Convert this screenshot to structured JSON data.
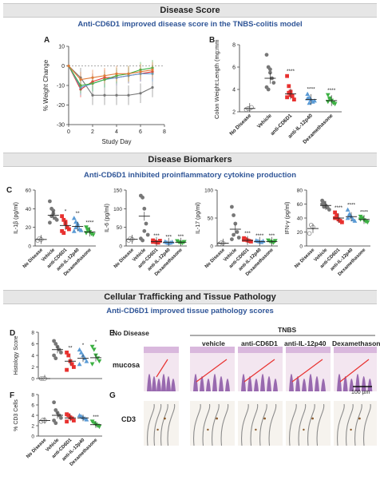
{
  "sections": {
    "disease_score": {
      "title": "Disease Score",
      "subtitle": "Anti-CD6D1 improved disease score in the TNBS-colitis model"
    },
    "biomarkers": {
      "title": "Disease Biomarkers",
      "subtitle": "Anti-CD6D1 inhibited proinflammatory cytokine production"
    },
    "pathology": {
      "title": "Cellular Trafficking and Tissue Pathology",
      "subtitle": "Anti-CD6D1 improved tissue pathology scores"
    }
  },
  "panel_letters": {
    "A": "A",
    "B": "B",
    "C": "C",
    "D": "D",
    "E": "E",
    "F": "F",
    "G": "G"
  },
  "groups": [
    "No Disease",
    "Vehicle",
    "anti-CD6D1",
    "anti-IL-12p40",
    "Dexamethasone"
  ],
  "colors": {
    "no_disease": "#888888",
    "vehicle": "#777777",
    "cd6d1": "#e8312f",
    "il12": "#5b9bd5",
    "dexa": "#3cb043"
  },
  "chart_data": [
    {
      "id": "A",
      "type": "line",
      "xlabel": "Study Day",
      "ylabel": "% Weight Change",
      "xlim": [
        0,
        8
      ],
      "ylim": [
        -30,
        10
      ],
      "xticks": [
        "0",
        "2",
        "4",
        "6",
        "8"
      ],
      "yticks": [
        "10",
        "0",
        "-10",
        "-20",
        "-30"
      ],
      "x": [
        0,
        1,
        2,
        3,
        4,
        5,
        6,
        7
      ],
      "series": [
        {
          "values": [
            0,
            -6,
            -15,
            -15,
            -15,
            -15,
            -14,
            -11
          ]
        },
        {
          "values": [
            0,
            -12,
            -8,
            -6,
            -6,
            -5,
            -4,
            -3
          ]
        },
        {
          "values": [
            0,
            -11,
            -9,
            -7,
            -6,
            -5,
            -4,
            -4
          ]
        },
        {
          "values": [
            0,
            -10,
            -9,
            -7,
            -5,
            -4,
            -2,
            -1
          ]
        },
        {
          "values": [
            0,
            -7,
            -6,
            -5,
            -4,
            -4,
            -3,
            -2
          ]
        }
      ]
    },
    {
      "id": "B",
      "type": "scatter",
      "ylabel": "Colon Weight:Length (mg:mm)",
      "ylim": [
        2,
        8
      ],
      "yticks": [
        "8",
        "6",
        "4",
        "2"
      ],
      "means": [
        2.3,
        5.0,
        3.6,
        3.1,
        3.0
      ],
      "points": [
        [
          2.2,
          2.3,
          2.3,
          2.4
        ],
        [
          7.1,
          6.0,
          5.5,
          5.0,
          4.6,
          4.2,
          4.0,
          5.8
        ],
        [
          5.2,
          4.3,
          3.8,
          3.4,
          3.1,
          3.3,
          3.7,
          3.5
        ],
        [
          3.6,
          3.3,
          3.1,
          2.9,
          3.0,
          3.2,
          2.8
        ],
        [
          3.5,
          3.2,
          3.0,
          2.8,
          2.7,
          2.9,
          3.1
        ]
      ],
      "significance": [
        "",
        "",
        "****",
        "****",
        "****"
      ]
    },
    {
      "id": "C1",
      "type": "scatter",
      "ylabel": "IL-1β (pg/ml)",
      "ylim": [
        0,
        60
      ],
      "yticks": [
        "60",
        "40",
        "20",
        "0"
      ],
      "means": [
        7,
        33,
        22,
        21,
        15
      ],
      "points": [
        [
          6,
          8,
          7
        ],
        [
          48,
          40,
          35,
          30,
          28,
          25,
          32,
          38
        ],
        [
          32,
          28,
          24,
          20,
          18,
          16,
          14,
          26
        ],
        [
          30,
          26,
          22,
          18,
          17,
          16,
          20,
          24
        ],
        [
          20,
          18,
          15,
          13,
          12,
          14,
          16
        ]
      ],
      "significance": [
        "",
        "",
        "*",
        "**",
        "****"
      ]
    },
    {
      "id": "C2",
      "type": "scatter",
      "ylabel": "IL-6 (pg/ml)",
      "ylim": [
        0,
        150
      ],
      "yticks": [
        "150",
        "100",
        "50",
        "0"
      ],
      "means": [
        18,
        80,
        12,
        10,
        10
      ],
      "points": [
        [
          15,
          20,
          18
        ],
        [
          135,
          130,
          100,
          60,
          30,
          20,
          15,
          40
        ],
        [
          15,
          12,
          10,
          9,
          14,
          11
        ],
        [
          12,
          10,
          8,
          9,
          11
        ],
        [
          13,
          10,
          9,
          8,
          11
        ]
      ],
      "significance": [
        "",
        "",
        "***",
        "***",
        "***"
      ]
    },
    {
      "id": "C3",
      "type": "scatter",
      "ylabel": "IL-17 (pg/ml)",
      "ylim": [
        0,
        100
      ],
      "yticks": [
        "100",
        "50",
        "0"
      ],
      "means": [
        5,
        30,
        10,
        8,
        8
      ],
      "points": [
        [
          4,
          6,
          5
        ],
        [
          70,
          55,
          40,
          25,
          15,
          12,
          20
        ],
        [
          14,
          12,
          10,
          9,
          8,
          11
        ],
        [
          10,
          9,
          8,
          7,
          9
        ],
        [
          10,
          8,
          7,
          6,
          9
        ]
      ],
      "significance": [
        "",
        "",
        "***",
        "****",
        "***"
      ]
    },
    {
      "id": "C4",
      "type": "scatter",
      "ylabel": "IFN-γ (pg/ml)",
      "ylim": [
        0,
        80
      ],
      "yticks": [
        "80",
        "60",
        "40",
        "20",
        "0"
      ],
      "means": [
        25,
        58,
        40,
        42,
        38
      ],
      "points": [
        [
          18,
          30,
          27
        ],
        [
          65,
          62,
          58,
          55,
          52,
          60,
          56
        ],
        [
          48,
          42,
          38,
          36,
          34,
          40,
          44
        ],
        [
          52,
          46,
          42,
          38,
          36,
          40,
          44
        ],
        [
          42,
          40,
          37,
          35,
          34,
          38
        ]
      ],
      "significance": [
        "",
        "",
        "****",
        "****",
        "****"
      ]
    },
    {
      "id": "D",
      "type": "scatter",
      "ylabel": "Histology Score",
      "ylim": [
        0,
        8
      ],
      "yticks": [
        "8",
        "6",
        "4",
        "2",
        "0"
      ],
      "means": [
        0,
        5.0,
        3.0,
        3.5,
        3.6
      ],
      "points": [
        [
          0,
          0,
          0
        ],
        [
          6.5,
          6,
          5.5,
          5,
          4.5,
          4,
          3.5
        ],
        [
          4.5,
          4,
          3,
          2.5,
          2,
          1.5
        ],
        [
          5,
          4.5,
          4,
          3.5,
          3,
          2.5
        ],
        [
          5.5,
          5,
          4,
          3.5,
          3,
          2.5
        ]
      ],
      "significance": [
        "",
        "",
        "**",
        "*",
        "*"
      ]
    },
    {
      "id": "F",
      "type": "scatter",
      "ylabel": "% CD3 Cells",
      "ylim": [
        0,
        8
      ],
      "yticks": [
        "8",
        "6",
        "4",
        "2",
        "0"
      ],
      "means": [
        3.0,
        4.0,
        3.5,
        3.5,
        2.2
      ],
      "points": [
        [
          2.8,
          3.1,
          3.0
        ],
        [
          6.5,
          5,
          4.5,
          4,
          3.5,
          3,
          2.5
        ],
        [
          4.2,
          4,
          3.6,
          3.4,
          3,
          2.8
        ],
        [
          4,
          3.8,
          3.6,
          3.4,
          3.2
        ],
        [
          2.8,
          2.5,
          2.2,
          2,
          1.8
        ]
      ],
      "significance": [
        "",
        "",
        "",
        "",
        "***"
      ]
    }
  ],
  "histology": {
    "header_tnbs": "TNBS",
    "columns": [
      "No Disease",
      "vehicle",
      "anti-CD6D1",
      "anti-IL-12p40",
      "Dexamethasone"
    ],
    "row_labels": [
      "mucosa",
      "CD3"
    ],
    "scale_bar": "100 µm"
  }
}
